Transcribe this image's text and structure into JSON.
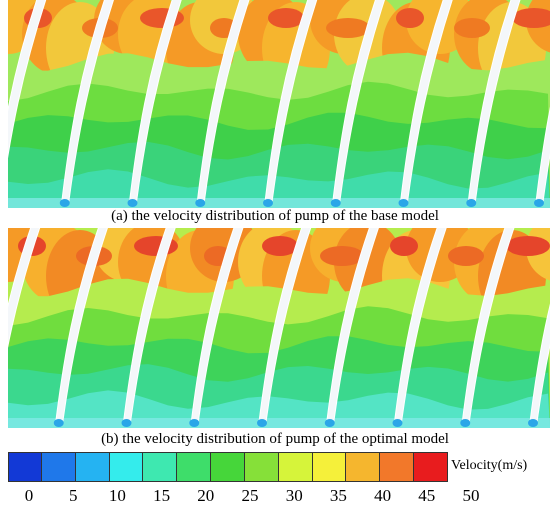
{
  "panels": [
    {
      "id": "a",
      "caption": "(a) the velocity distribution of pump of the base model",
      "blade_count": 8,
      "bands": [
        "#9ee85c",
        "#6ddd40",
        "#3fd04a",
        "#3ad37a",
        "#40dcaa"
      ],
      "top_colors": [
        "#f6b52e",
        "#f59a26",
        "#f2c83b",
        "#f59a26"
      ],
      "hot_spots": [
        "#e9562a",
        "#ef7a22"
      ]
    },
    {
      "id": "b",
      "caption": "(b) the velocity distribution of pump of the optimal model",
      "blade_count": 8,
      "bands": [
        "#b5ec4e",
        "#70dd3e",
        "#3ed35a",
        "#3bd88e",
        "#54e4c5"
      ],
      "top_colors": [
        "#f59a26",
        "#f7b02d",
        "#f28a24",
        "#f6c43a"
      ],
      "hot_spots": [
        "#e5452b",
        "#ec6a25"
      ]
    }
  ],
  "legend": {
    "title": "Velocity(m/s)",
    "colors": [
      "#1239d6",
      "#1f78ea",
      "#25b3f2",
      "#34ecec",
      "#3ee8b0",
      "#3edd6a",
      "#46d63a",
      "#86e039",
      "#d6f43a",
      "#f5f03a",
      "#f5b62e",
      "#f2782a",
      "#e81c1e"
    ],
    "ticks": [
      "0",
      "5",
      "10",
      "15",
      "20",
      "25",
      "30",
      "35",
      "40",
      "45",
      "50"
    ]
  }
}
